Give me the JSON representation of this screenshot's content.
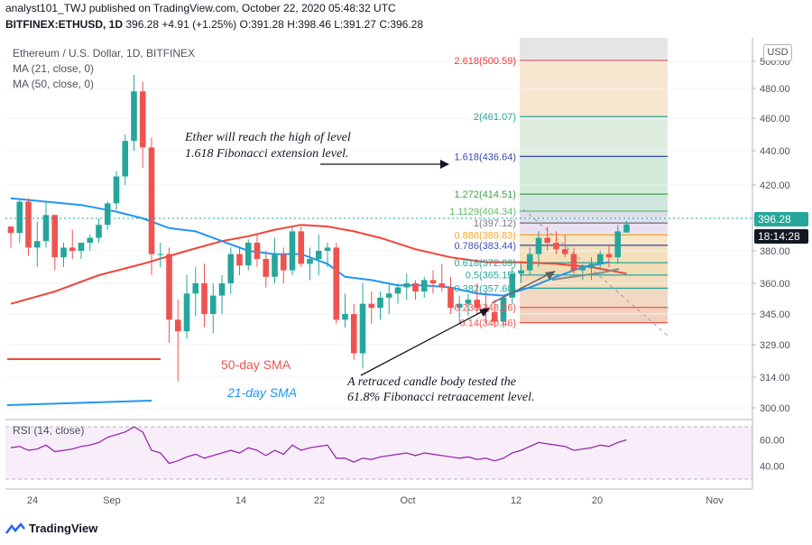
{
  "header": {
    "line1": "analyst101_TWJ published on TradingView.com, October 22, 2020 05:48:32 UTC",
    "symbol": "BITFINEX:ETHUSD, 1D",
    "price": "396.28",
    "change": "+4.91 (+1.25%)",
    "ohlc_o": "O:391.28",
    "ohlc_h": "H:398.46",
    "ohlc_l": "L:391.27",
    "ohlc_c": "C:396.28"
  },
  "legend": {
    "title": "Ethereum / U.S. Dollar, 1D, BITFINEX",
    "ma21": "MA (21, close, 0)",
    "ma50": "MA (50, close, 0)"
  },
  "currency_button": "USD",
  "price_pills": {
    "price": "396.28",
    "countdown": "18:14:28"
  },
  "rsi_label": "RSI (14, close)",
  "footer_brand": "TradingView",
  "annotations": {
    "top_line1": "Ether will reach the high of  level",
    "top_line2": "1.618 Fibonacci extension level.",
    "sma50": "50-day SMA",
    "sma21": "21-day SMA",
    "bottom_line1": "A retraced candle body tested the",
    "bottom_line2": "61.8% Fibonacci retraacement level."
  },
  "colors": {
    "up": "#26a69a",
    "down": "#ef5350",
    "ma21": "#2196f3",
    "ma50": "#f44336",
    "rsi": "#9c27b0"
  },
  "chart_data": {
    "type": "candlestick",
    "price_axis": {
      "ticks": [
        300,
        314,
        329,
        345,
        360,
        380,
        400,
        420,
        440,
        460,
        480,
        500
      ],
      "labels": [
        "300.00",
        "314.00",
        "329.00",
        "345.00",
        "360.00",
        "380.00",
        "400.00",
        "420.00",
        "440.00",
        "460.00",
        "480.00",
        "500.00"
      ]
    },
    "time_axis": {
      "labels": [
        "24",
        "Sep",
        "14",
        "22",
        "Oct",
        "12",
        "20",
        "Nov"
      ]
    },
    "candles": [
      [
        395,
        395,
        382,
        391
      ],
      [
        391,
        412,
        385,
        410
      ],
      [
        410,
        412,
        377,
        382
      ],
      [
        382,
        398,
        370,
        386
      ],
      [
        386,
        410,
        382,
        402
      ],
      [
        402,
        402,
        368,
        376
      ],
      [
        376,
        385,
        370,
        382
      ],
      [
        382,
        393,
        375,
        380
      ],
      [
        380,
        385,
        375,
        385
      ],
      [
        385,
        390,
        380,
        388
      ],
      [
        388,
        400,
        385,
        396
      ],
      [
        396,
        410,
        393,
        409
      ],
      [
        409,
        428,
        405,
        425
      ],
      [
        425,
        450,
        420,
        446
      ],
      [
        446,
        490,
        440,
        478
      ],
      [
        478,
        485,
        430,
        442
      ],
      [
        442,
        448,
        365,
        378
      ],
      [
        378,
        385,
        370,
        378
      ],
      [
        378,
        382,
        330,
        342
      ],
      [
        342,
        352,
        312,
        336
      ],
      [
        336,
        365,
        332,
        355
      ],
      [
        355,
        370,
        344,
        360
      ],
      [
        360,
        372,
        338,
        345
      ],
      [
        345,
        360,
        335,
        354
      ],
      [
        354,
        365,
        345,
        360
      ],
      [
        360,
        382,
        355,
        378
      ],
      [
        378,
        382,
        365,
        371
      ],
      [
        371,
        387,
        368,
        385
      ],
      [
        385,
        390,
        370,
        375
      ],
      [
        375,
        380,
        358,
        364
      ],
      [
        364,
        388,
        360,
        378
      ],
      [
        378,
        382,
        360,
        368
      ],
      [
        368,
        395,
        365,
        392
      ],
      [
        392,
        395,
        370,
        372
      ],
      [
        372,
        382,
        362,
        375
      ],
      [
        375,
        390,
        365,
        380
      ],
      [
        380,
        385,
        370,
        382
      ],
      [
        382,
        385,
        340,
        342
      ],
      [
        342,
        355,
        338,
        345
      ],
      [
        345,
        350,
        322,
        325
      ],
      [
        325,
        360,
        318,
        350
      ],
      [
        350,
        356,
        340,
        348
      ],
      [
        348,
        356,
        342,
        353
      ],
      [
        353,
        360,
        345,
        355
      ],
      [
        355,
        360,
        350,
        358
      ],
      [
        358,
        366,
        352,
        360
      ],
      [
        360,
        362,
        352,
        356
      ],
      [
        356,
        364,
        353,
        362
      ],
      [
        362,
        368,
        355,
        360
      ],
      [
        360,
        372,
        356,
        358
      ],
      [
        358,
        364,
        345,
        348
      ],
      [
        348,
        354,
        340,
        350
      ],
      [
        350,
        355,
        344,
        352
      ],
      [
        352,
        360,
        345,
        348
      ],
      [
        348,
        356,
        340,
        346
      ],
      [
        346,
        352,
        338,
        341
      ],
      [
        341,
        354,
        338,
        353
      ],
      [
        353,
        370,
        350,
        366
      ],
      [
        366,
        372,
        360,
        368
      ],
      [
        368,
        382,
        365,
        378
      ],
      [
        378,
        392,
        370,
        388
      ],
      [
        388,
        395,
        380,
        385
      ],
      [
        385,
        392,
        378,
        381
      ],
      [
        381,
        390,
        376,
        378
      ],
      [
        378,
        382,
        366,
        368
      ],
      [
        368,
        372,
        362,
        370
      ],
      [
        370,
        376,
        362,
        372
      ],
      [
        372,
        380,
        368,
        378
      ],
      [
        378,
        384,
        370,
        376
      ],
      [
        376,
        396,
        372,
        392
      ],
      [
        391.28,
        398.46,
        391.27,
        396.28
      ]
    ],
    "ma21_points": [
      [
        0,
        412
      ],
      [
        4,
        410
      ],
      [
        8,
        408
      ],
      [
        12,
        404
      ],
      [
        15,
        400
      ],
      [
        18,
        394
      ],
      [
        21,
        392
      ],
      [
        24,
        386
      ],
      [
        27,
        380
      ],
      [
        30,
        378
      ],
      [
        33,
        378
      ],
      [
        36,
        372
      ],
      [
        38,
        364
      ],
      [
        41,
        362
      ],
      [
        44,
        359
      ],
      [
        47,
        359
      ],
      [
        50,
        358
      ],
      [
        53,
        355
      ],
      [
        56,
        354
      ],
      [
        59,
        358
      ],
      [
        62,
        364
      ],
      [
        65,
        370
      ],
      [
        68,
        373
      ]
    ],
    "ma50_points": [
      [
        0,
        350
      ],
      [
        5,
        356
      ],
      [
        10,
        365
      ],
      [
        15,
        372
      ],
      [
        20,
        380
      ],
      [
        24,
        386
      ],
      [
        27,
        389
      ],
      [
        30,
        393
      ],
      [
        33,
        396
      ],
      [
        36,
        395
      ],
      [
        39,
        392
      ],
      [
        42,
        388
      ],
      [
        46,
        381
      ],
      [
        50,
        376
      ],
      [
        54,
        373
      ],
      [
        58,
        373
      ],
      [
        62,
        372
      ],
      [
        66,
        370
      ],
      [
        70,
        366
      ]
    ],
    "fibonacci": [
      {
        "label": "2.618(500.59)",
        "price": 500.59
      },
      {
        "label": "2(461.07)",
        "price": 461.07
      },
      {
        "label": "1.618(436.64)",
        "price": 436.64
      },
      {
        "label": "1.272(414.51)",
        "price": 414.51
      },
      {
        "label": "1.1129(404.34)",
        "price": 404.34
      },
      {
        "label": "1(397.12)",
        "price": 397.12
      },
      {
        "label": "0.886(389.83)",
        "price": 389.83
      },
      {
        "label": "0.786(383.44)",
        "price": 383.44
      },
      {
        "label": "0.618(372.69)",
        "price": 372.69
      },
      {
        "label": "0.5(365.15)",
        "price": 365.15
      },
      {
        "label": "0.382(357.60)",
        "price": 357.6
      },
      {
        "label": "0.236(348.26)",
        "price": 348.26
      },
      {
        "label": "0.14(340.46)",
        "price": 340.46
      }
    ],
    "rsi": {
      "ticks": [
        40,
        60
      ],
      "labels": [
        "40.00",
        "60.00"
      ],
      "values": [
        54,
        55,
        52,
        53,
        56,
        51,
        52,
        53,
        55,
        56,
        58,
        62,
        64,
        66,
        70,
        66,
        52,
        50,
        42,
        44,
        47,
        49,
        46,
        48,
        50,
        52,
        50,
        54,
        52,
        48,
        52,
        49,
        56,
        52,
        54,
        55,
        56,
        46,
        46,
        43,
        46,
        45,
        47,
        48,
        49,
        50,
        48,
        50,
        49,
        48,
        47,
        46,
        47,
        45,
        46,
        44,
        46,
        50,
        52,
        55,
        58,
        57,
        56,
        55,
        52,
        53,
        54,
        56,
        55,
        58,
        60
      ]
    }
  }
}
